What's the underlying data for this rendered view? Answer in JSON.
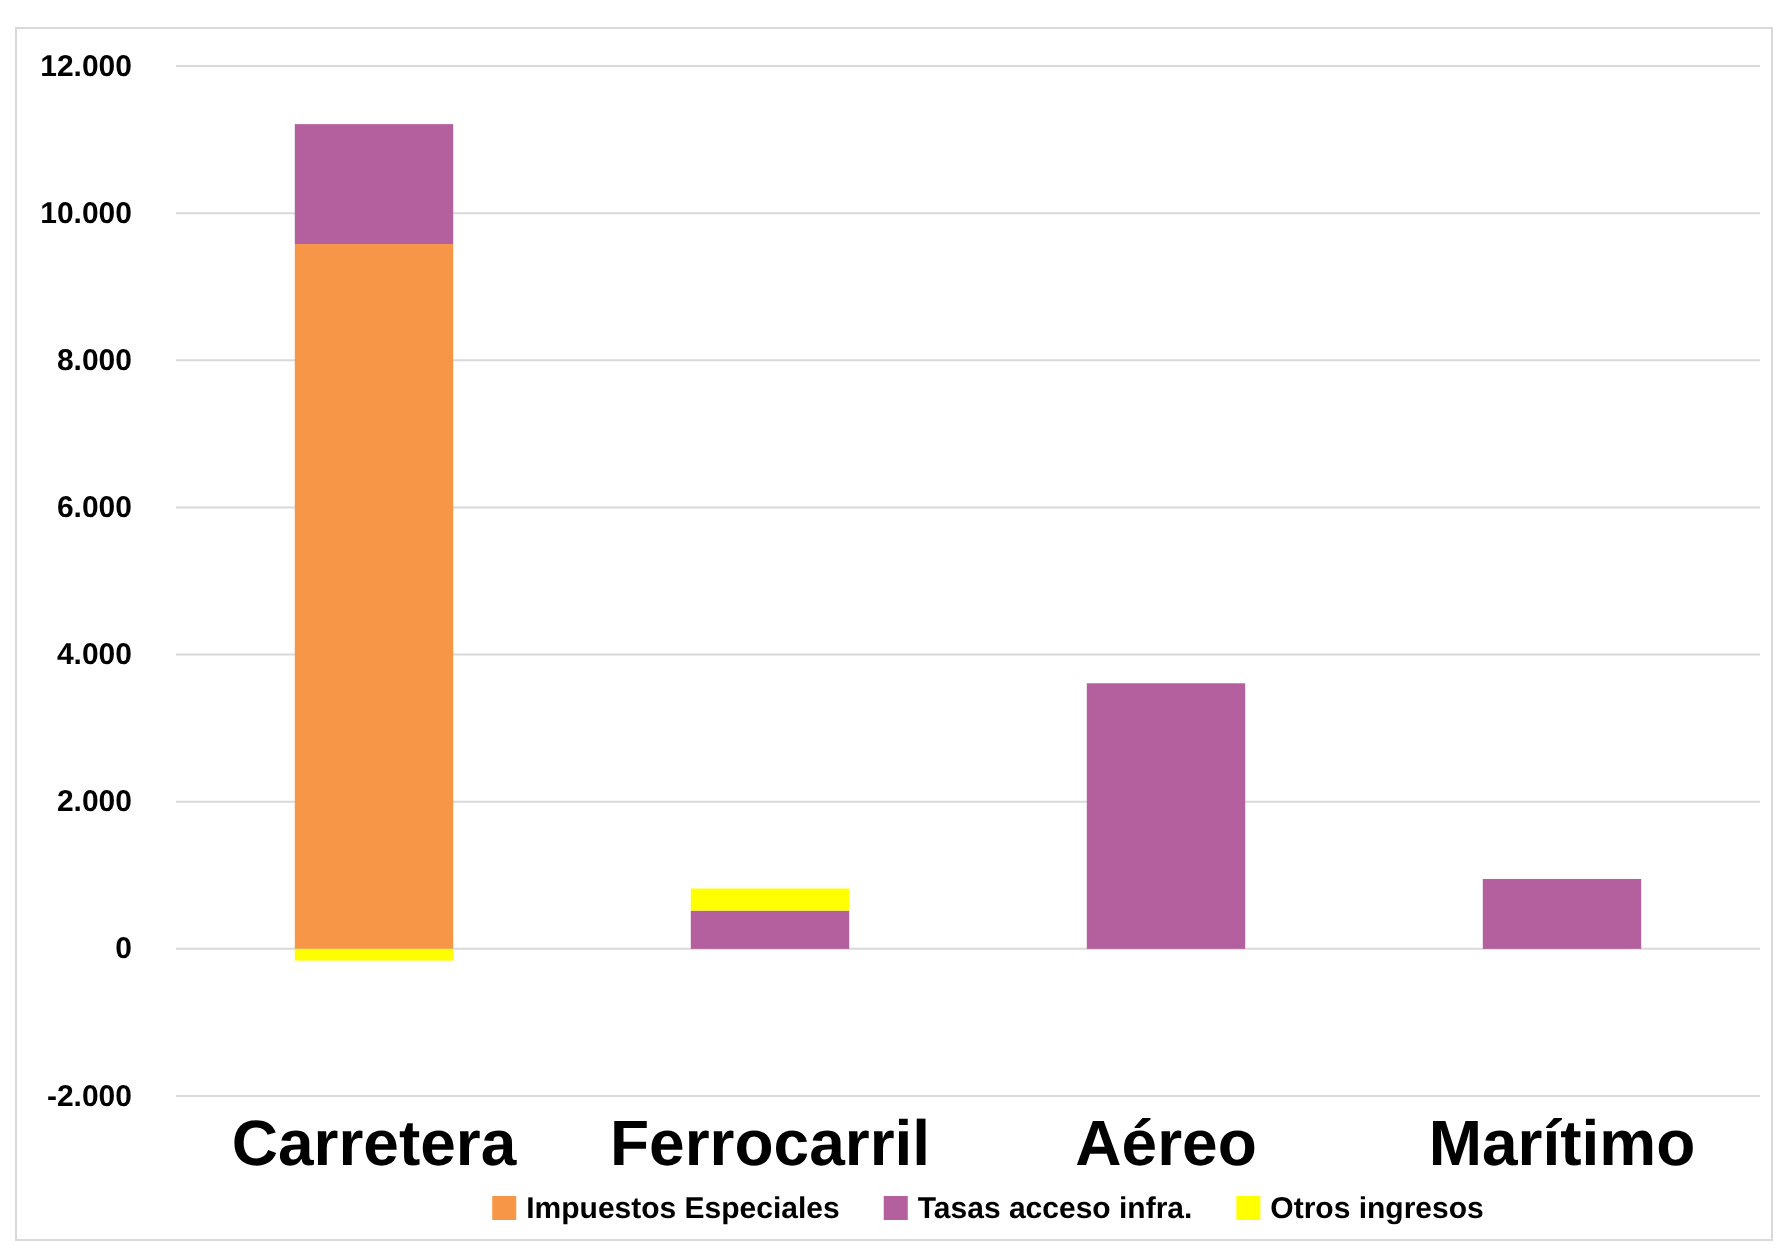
{
  "chart_data": {
    "type": "bar",
    "stacked": true,
    "categories": [
      "Carretera",
      "Ferrocarril",
      "Aéreo",
      "Marítimo"
    ],
    "series": [
      {
        "name": "Impuestos Especiales",
        "color": "#f79646",
        "values": [
          9580,
          0,
          0,
          0
        ]
      },
      {
        "name": "Tasas acceso infra.",
        "color": "#b5609e",
        "values": [
          1630,
          520,
          3610,
          950
        ]
      },
      {
        "name": "Otros ingresos",
        "color": "#ffff00",
        "values": [
          -160,
          300,
          0,
          0
        ]
      }
    ],
    "ylim": [
      -2000,
      12000
    ],
    "yticks": [
      {
        "value": -2000,
        "label": "-2.000"
      },
      {
        "value": 0,
        "label": "0"
      },
      {
        "value": 2000,
        "label": "2.000"
      },
      {
        "value": 4000,
        "label": "4.000"
      },
      {
        "value": 6000,
        "label": "6.000"
      },
      {
        "value": 8000,
        "label": "8.000"
      },
      {
        "value": 10000,
        "label": "10.000"
      },
      {
        "value": 12000,
        "label": "12.000"
      }
    ],
    "grid": "y",
    "legend": "bottom"
  }
}
